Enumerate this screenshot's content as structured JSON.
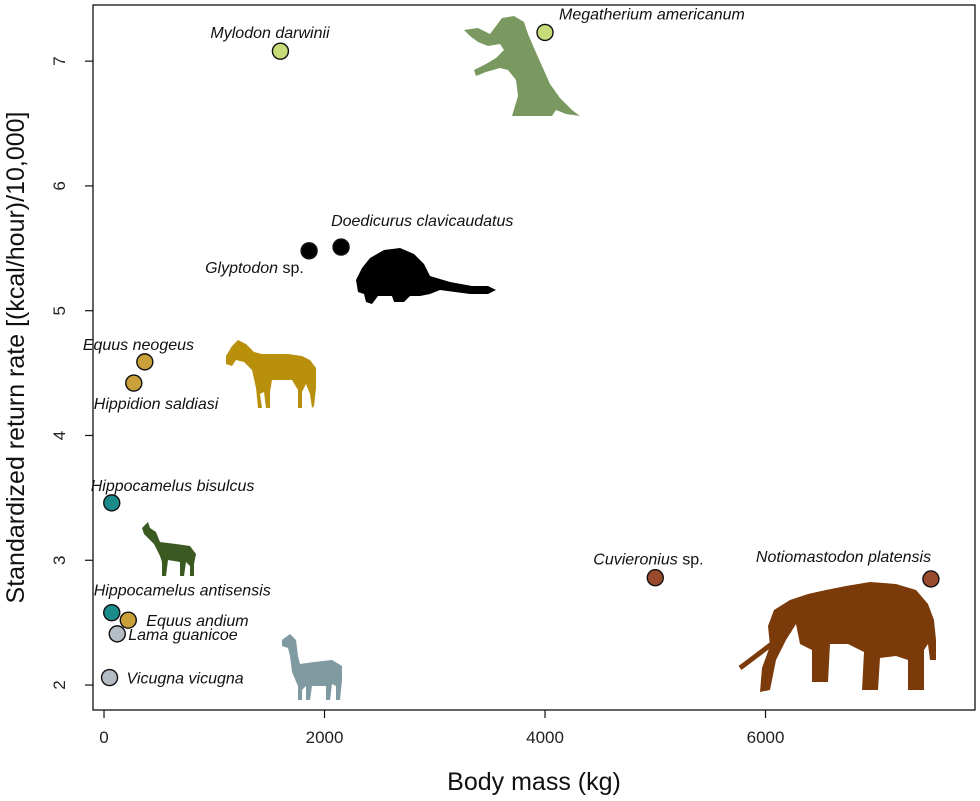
{
  "chart_data": {
    "type": "scatter",
    "title": "",
    "xlabel": "Body mass (kg)",
    "ylabel": "Standardized return rate [(kcal/hour)/10,000]",
    "xlim": [
      -100,
      7900
    ],
    "ylim": [
      1.8,
      7.45
    ],
    "xticks": [
      0,
      2000,
      4000,
      6000
    ],
    "yticks": [
      2,
      3,
      4,
      5,
      6,
      7
    ],
    "grid": false,
    "legend": "none",
    "points": [
      {
        "name": "Mylodon darwinii",
        "suffix": "",
        "x": 1600,
        "y": 7.08,
        "color": "#c5dc78"
      },
      {
        "name": "Megatherium americanum",
        "suffix": "",
        "x": 4000,
        "y": 7.23,
        "color": "#c5dc78"
      },
      {
        "name": "Doedicurus clavicaudatus",
        "suffix": "",
        "x": 2150,
        "y": 5.51,
        "color": "#000000"
      },
      {
        "name": "Glyptodon",
        "suffix": " sp.",
        "x": 1860,
        "y": 5.48,
        "color": "#000000"
      },
      {
        "name": "Equus neogeus",
        "suffix": "",
        "x": 370,
        "y": 4.59,
        "color": "#c9a03a"
      },
      {
        "name": "Hippidion saldiasi",
        "suffix": "",
        "x": 270,
        "y": 4.42,
        "color": "#c9a03a"
      },
      {
        "name": "Hippocamelus bisulcus",
        "suffix": "",
        "x": 70,
        "y": 3.46,
        "color": "#1a8a8a"
      },
      {
        "name": "Cuvieronius",
        "suffix": " sp.",
        "x": 5000,
        "y": 2.86,
        "color": "#9a4a2c"
      },
      {
        "name": "Notiomastodon platensis",
        "suffix": "",
        "x": 7500,
        "y": 2.85,
        "color": "#9a4a2c"
      },
      {
        "name": "Hippocamelus antisensis",
        "suffix": "",
        "x": 70,
        "y": 2.58,
        "color": "#1a8a8a"
      },
      {
        "name": "Equus andium",
        "suffix": "",
        "x": 220,
        "y": 2.52,
        "color": "#c9a03a"
      },
      {
        "name": "Lama guanicoe",
        "suffix": "",
        "x": 120,
        "y": 2.41,
        "color": "#b4bcc4"
      },
      {
        "name": "Vicugna vicugna",
        "suffix": "",
        "x": 50,
        "y": 2.06,
        "color": "#b4bcc4"
      }
    ]
  },
  "silhouettes": [
    {
      "name": "ground-sloth-silhouette",
      "color": "#7a9960"
    },
    {
      "name": "glyptodont-silhouette",
      "color": "#000000"
    },
    {
      "name": "horse-silhouette",
      "color": "#b8900c"
    },
    {
      "name": "deer-silhouette",
      "color": "#3a5a22"
    },
    {
      "name": "llama-silhouette",
      "color": "#7f9aa0"
    },
    {
      "name": "gomphothere-silhouette",
      "color": "#7a3a0a"
    }
  ]
}
